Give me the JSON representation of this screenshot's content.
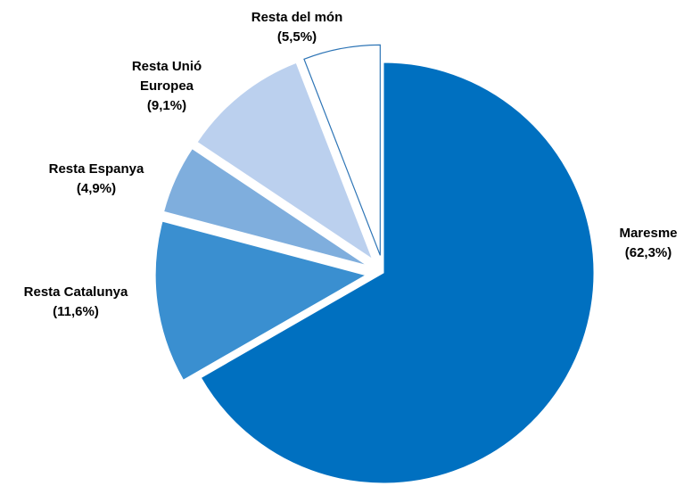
{
  "chart_data": {
    "type": "pie",
    "categories": [
      "Maresme",
      "Resta Catalunya",
      "Resta Espanya",
      "Resta Unió Europea",
      "Resta del món"
    ],
    "values": [
      62.3,
      11.6,
      4.9,
      9.1,
      5.5
    ],
    "value_labels": [
      "(62,3%)",
      "(11,6%)",
      "(4,9%)",
      "(9,1%)",
      "(5,5%)"
    ],
    "colors": [
      "#0070c0",
      "#3a8fd0",
      "#7faedd",
      "#bbd0ee",
      "#ffffff"
    ]
  }
}
